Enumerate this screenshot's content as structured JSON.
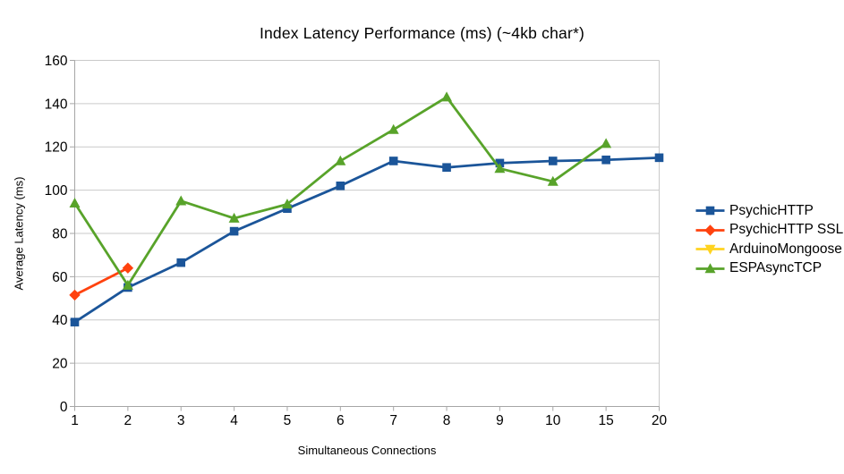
{
  "chart_data": {
    "type": "line",
    "title": "Index Latency Performance (ms) (~4kb char*)",
    "xlabel": "Simultaneous Connections",
    "ylabel": "Average Latency (ms)",
    "categories": [
      "1",
      "2",
      "3",
      "4",
      "5",
      "6",
      "7",
      "8",
      "9",
      "10",
      "15",
      "20"
    ],
    "ylim": [
      0,
      160
    ],
    "y_ticks": [
      0,
      20,
      40,
      60,
      80,
      100,
      120,
      140,
      160
    ],
    "grid": "horizontal",
    "legend_position": "right",
    "colors": {
      "background": "#ffffff",
      "gridline": "#c9c9c9",
      "axis": "#a6a6a6",
      "text": "#000000"
    },
    "series": [
      {
        "name": "PsychicHTTP",
        "color": "#1b5599",
        "marker": "square",
        "values": [
          39,
          55,
          66.5,
          81,
          91.5,
          102,
          113.5,
          110.5,
          112.5,
          113.5,
          114,
          115
        ]
      },
      {
        "name": "PsychicHTTP SSL",
        "color": "#ff420e",
        "marker": "diamond",
        "values": [
          51.5,
          64,
          null,
          null,
          null,
          null,
          null,
          null,
          null,
          null,
          null,
          null
        ]
      },
      {
        "name": "ArduinoMongoose",
        "color": "#ffd320",
        "marker": "triangle-down",
        "values": [
          null,
          null,
          null,
          null,
          null,
          null,
          null,
          null,
          null,
          null,
          null,
          null
        ]
      },
      {
        "name": "ESPAsyncTCP",
        "color": "#58a32a",
        "marker": "triangle-up",
        "values": [
          94,
          56,
          95,
          87,
          93.5,
          113.5,
          128,
          143,
          110,
          104,
          121.5,
          null
        ]
      }
    ]
  }
}
